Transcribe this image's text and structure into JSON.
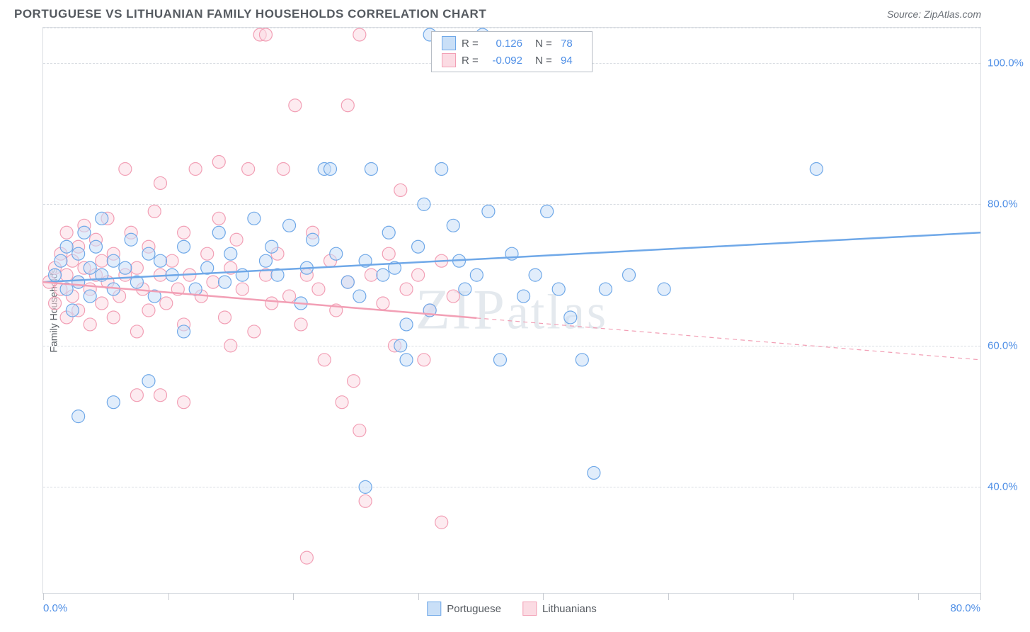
{
  "title": "PORTUGUESE VS LITHUANIAN FAMILY HOUSEHOLDS CORRELATION CHART",
  "source_label": "Source: ZipAtlas.com",
  "y_axis_label": "Family Households",
  "watermark": "ZIPatlas",
  "chart": {
    "type": "scatter",
    "xlim": [
      0,
      80
    ],
    "ylim": [
      25,
      105
    ],
    "x_ticks": [
      0,
      10.67,
      21.33,
      32,
      42.67,
      53.33,
      64,
      74.67,
      80
    ],
    "x_tick_labels": {
      "0": "0.0%",
      "80": "80.0%"
    },
    "y_gridlines": [
      40,
      60,
      80,
      100,
      105
    ],
    "y_tick_labels": {
      "40": "40.0%",
      "60": "60.0%",
      "80": "80.0%",
      "100": "100.0%"
    },
    "background_color": "#ffffff",
    "grid_color": "#d9dde2",
    "marker_radius": 9,
    "marker_opacity": 0.55,
    "line_width": 2.5,
    "series": [
      {
        "name": "Portuguese",
        "color": "#6fa8e8",
        "fill": "#c9dff7",
        "stroke": "#6fa8e8",
        "R": "0.126",
        "N": "78",
        "regression": {
          "x1": 0,
          "y1": 69,
          "x2": 80,
          "y2": 76,
          "solid_until_x": 80
        },
        "points": [
          [
            1,
            70
          ],
          [
            1.5,
            72
          ],
          [
            2,
            68
          ],
          [
            2,
            74
          ],
          [
            2.5,
            65
          ],
          [
            3,
            73
          ],
          [
            3,
            69
          ],
          [
            3.5,
            76
          ],
          [
            4,
            71
          ],
          [
            4,
            67
          ],
          [
            4.5,
            74
          ],
          [
            5,
            70
          ],
          [
            5,
            78
          ],
          [
            6,
            72
          ],
          [
            6,
            68
          ],
          [
            7,
            71
          ],
          [
            7.5,
            75
          ],
          [
            8,
            69
          ],
          [
            9,
            73
          ],
          [
            9.5,
            67
          ],
          [
            10,
            72
          ],
          [
            11,
            70
          ],
          [
            12,
            74
          ],
          [
            13,
            68
          ],
          [
            14,
            71
          ],
          [
            15,
            76
          ],
          [
            15.5,
            69
          ],
          [
            16,
            73
          ],
          [
            17,
            70
          ],
          [
            18,
            78
          ],
          [
            19,
            72
          ],
          [
            19.5,
            74
          ],
          [
            20,
            70
          ],
          [
            21,
            77
          ],
          [
            22,
            66
          ],
          [
            22.5,
            71
          ],
          [
            23,
            75
          ],
          [
            24,
            85
          ],
          [
            24.5,
            85
          ],
          [
            25,
            73
          ],
          [
            26,
            69
          ],
          [
            27,
            67
          ],
          [
            27.5,
            72
          ],
          [
            28,
            85
          ],
          [
            29,
            70
          ],
          [
            29.5,
            76
          ],
          [
            30,
            71
          ],
          [
            30.5,
            60
          ],
          [
            31,
            58
          ],
          [
            31,
            63
          ],
          [
            32,
            74
          ],
          [
            32.5,
            80
          ],
          [
            33,
            65
          ],
          [
            34,
            85
          ],
          [
            35,
            77
          ],
          [
            35.5,
            72
          ],
          [
            36,
            68
          ],
          [
            37,
            70
          ],
          [
            37.5,
            104
          ],
          [
            38,
            79
          ],
          [
            39,
            58
          ],
          [
            40,
            73
          ],
          [
            41,
            67
          ],
          [
            42,
            70
          ],
          [
            43,
            79
          ],
          [
            44,
            68
          ],
          [
            45,
            64
          ],
          [
            46,
            58
          ],
          [
            48,
            68
          ],
          [
            50,
            70
          ],
          [
            47,
            42
          ],
          [
            53,
            68
          ],
          [
            27.5,
            40
          ],
          [
            33,
            104
          ],
          [
            66,
            85
          ],
          [
            3,
            50
          ],
          [
            6,
            52
          ],
          [
            9,
            55
          ],
          [
            12,
            62
          ]
        ]
      },
      {
        "name": "Lithuanians",
        "color": "#f29fb5",
        "fill": "#fbdbe3",
        "stroke": "#f29fb5",
        "R": "-0.092",
        "N": "94",
        "regression": {
          "x1": 0,
          "y1": 69,
          "x2": 80,
          "y2": 58,
          "solid_until_x": 37
        },
        "points": [
          [
            0.5,
            69
          ],
          [
            1,
            71
          ],
          [
            1,
            66
          ],
          [
            1.5,
            73
          ],
          [
            1.5,
            68
          ],
          [
            2,
            70
          ],
          [
            2,
            64
          ],
          [
            2,
            76
          ],
          [
            2.5,
            67
          ],
          [
            2.5,
            72
          ],
          [
            3,
            69
          ],
          [
            3,
            74
          ],
          [
            3,
            65
          ],
          [
            3.5,
            71
          ],
          [
            3.5,
            77
          ],
          [
            4,
            68
          ],
          [
            4,
            63
          ],
          [
            4.5,
            70
          ],
          [
            4.5,
            75
          ],
          [
            5,
            66
          ],
          [
            5,
            72
          ],
          [
            5.5,
            69
          ],
          [
            5.5,
            78
          ],
          [
            6,
            64
          ],
          [
            6,
            73
          ],
          [
            6.5,
            67
          ],
          [
            7,
            70
          ],
          [
            7,
            85
          ],
          [
            7.5,
            76
          ],
          [
            8,
            62
          ],
          [
            8,
            71
          ],
          [
            8.5,
            68
          ],
          [
            9,
            74
          ],
          [
            9,
            65
          ],
          [
            9.5,
            79
          ],
          [
            10,
            70
          ],
          [
            10,
            83
          ],
          [
            10.5,
            66
          ],
          [
            11,
            72
          ],
          [
            11.5,
            68
          ],
          [
            12,
            76
          ],
          [
            12,
            63
          ],
          [
            12.5,
            70
          ],
          [
            13,
            85
          ],
          [
            13.5,
            67
          ],
          [
            14,
            73
          ],
          [
            14.5,
            69
          ],
          [
            15,
            78
          ],
          [
            15,
            86
          ],
          [
            15.5,
            64
          ],
          [
            16,
            71
          ],
          [
            16,
            60
          ],
          [
            16.5,
            75
          ],
          [
            17,
            68
          ],
          [
            17.5,
            85
          ],
          [
            18,
            62
          ],
          [
            18.5,
            104
          ],
          [
            19,
            70
          ],
          [
            19,
            104
          ],
          [
            19.5,
            66
          ],
          [
            20,
            73
          ],
          [
            20.5,
            85
          ],
          [
            21,
            67
          ],
          [
            21.5,
            94
          ],
          [
            22,
            63
          ],
          [
            22.5,
            70
          ],
          [
            23,
            76
          ],
          [
            23.5,
            68
          ],
          [
            24,
            58
          ],
          [
            24.5,
            72
          ],
          [
            25,
            65
          ],
          [
            25.5,
            52
          ],
          [
            26,
            69
          ],
          [
            26,
            94
          ],
          [
            26.5,
            55
          ],
          [
            27,
            48
          ],
          [
            27.5,
            38
          ],
          [
            28,
            70
          ],
          [
            27,
            104
          ],
          [
            29,
            66
          ],
          [
            29.5,
            73
          ],
          [
            30,
            60
          ],
          [
            30.5,
            82
          ],
          [
            31,
            68
          ],
          [
            32,
            70
          ],
          [
            32.5,
            58
          ],
          [
            33,
            65
          ],
          [
            34,
            72
          ],
          [
            35,
            67
          ],
          [
            22.5,
            30
          ],
          [
            34,
            35
          ],
          [
            8,
            53
          ],
          [
            10,
            53
          ],
          [
            12,
            52
          ]
        ]
      }
    ]
  },
  "legend_bottom": [
    {
      "label": "Portuguese",
      "fill": "#c9dff7",
      "stroke": "#6fa8e8"
    },
    {
      "label": "Lithuanians",
      "fill": "#fbdbe3",
      "stroke": "#f29fb5"
    }
  ]
}
